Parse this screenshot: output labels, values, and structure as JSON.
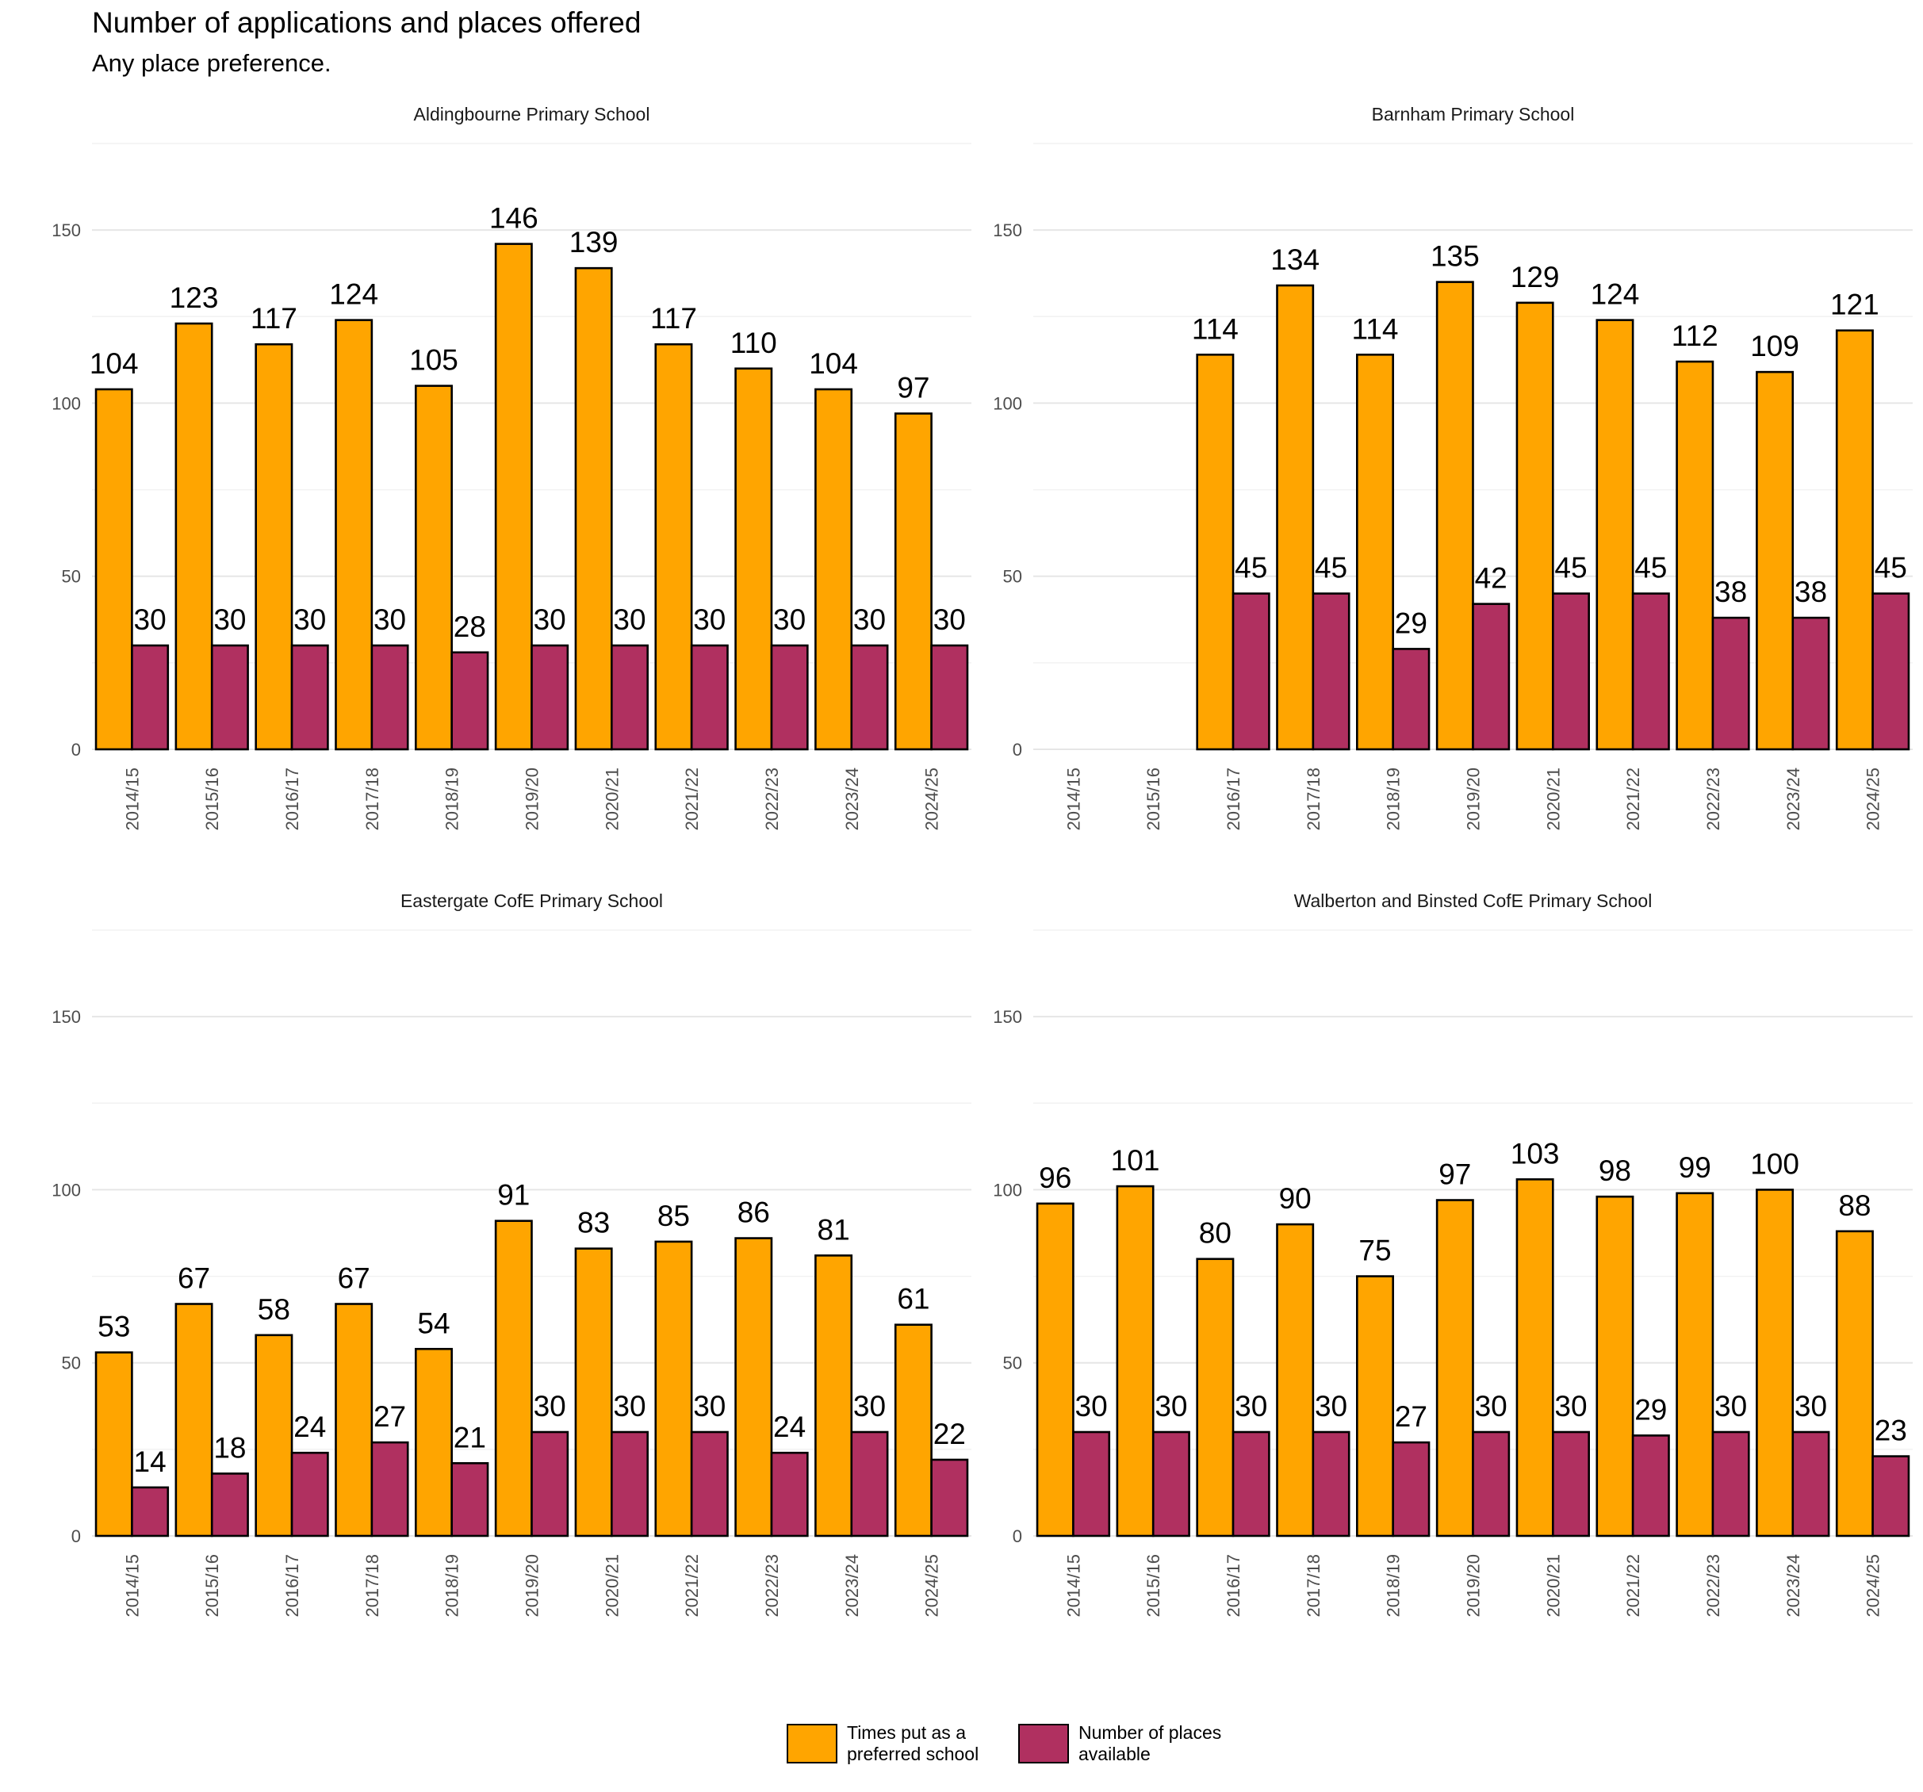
{
  "chart_data": {
    "type": "bar",
    "title": "Number of applications and places offered",
    "subtitle": "Any place preference.",
    "categories": [
      "2014/15",
      "2015/16",
      "2016/17",
      "2017/18",
      "2018/19",
      "2019/20",
      "2020/21",
      "2021/22",
      "2022/23",
      "2023/24",
      "2024/25"
    ],
    "ylim": [
      0,
      175
    ],
    "yticks": [
      0,
      50,
      100,
      150
    ],
    "grid": true,
    "legend_position": "bottom",
    "legend": [
      {
        "label": "Times put as a preferred school",
        "line1": "Times put as a",
        "line2": "preferred school",
        "color": "#FFA500"
      },
      {
        "label": "Number of places available",
        "line1": "Number of places",
        "line2": "available",
        "color": "#B03060"
      }
    ],
    "panels": [
      {
        "title": "Aldingbourne Primary School",
        "series": [
          {
            "name": "Times put as a preferred school",
            "values": [
              104,
              123,
              117,
              124,
              105,
              146,
              139,
              117,
              110,
              104,
              97
            ]
          },
          {
            "name": "Number of places available",
            "values": [
              30,
              30,
              30,
              30,
              28,
              30,
              30,
              30,
              30,
              30,
              30
            ]
          }
        ]
      },
      {
        "title": "Barnham Primary School",
        "series": [
          {
            "name": "Times put as a preferred school",
            "values": [
              null,
              null,
              114,
              134,
              114,
              135,
              129,
              124,
              112,
              109,
              121
            ]
          },
          {
            "name": "Number of places available",
            "values": [
              null,
              null,
              45,
              45,
              29,
              42,
              45,
              45,
              38,
              38,
              45
            ]
          }
        ]
      },
      {
        "title": "Eastergate CofE Primary School",
        "series": [
          {
            "name": "Times put as a preferred school",
            "values": [
              53,
              67,
              58,
              67,
              54,
              91,
              83,
              85,
              86,
              81,
              61
            ]
          },
          {
            "name": "Number of places available",
            "values": [
              14,
              18,
              24,
              27,
              21,
              30,
              30,
              30,
              24,
              30,
              22
            ]
          }
        ]
      },
      {
        "title": "Walberton and Binsted CofE Primary School",
        "series": [
          {
            "name": "Times put as a preferred school",
            "values": [
              96,
              101,
              80,
              90,
              75,
              97,
              103,
              98,
              99,
              100,
              88
            ]
          },
          {
            "name": "Number of places available",
            "values": [
              30,
              30,
              30,
              30,
              27,
              30,
              30,
              29,
              30,
              30,
              23
            ]
          }
        ]
      }
    ]
  }
}
